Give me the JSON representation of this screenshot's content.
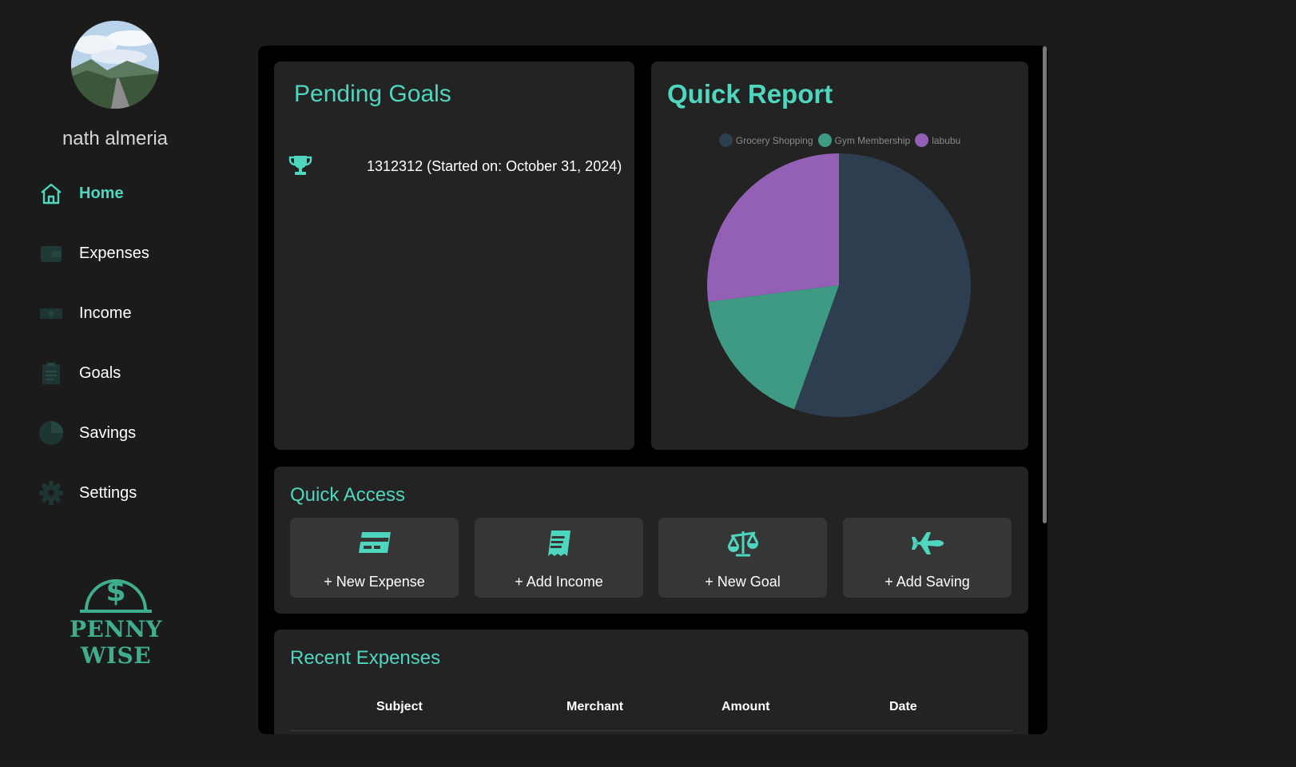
{
  "user": {
    "name": "nath almeria"
  },
  "nav": {
    "items": [
      {
        "label": "Home",
        "icon": "home-icon",
        "active": true
      },
      {
        "label": "Expenses",
        "icon": "wallet-icon"
      },
      {
        "label": "Income",
        "icon": "money-bill-icon"
      },
      {
        "label": "Goals",
        "icon": "clipboard-icon"
      },
      {
        "label": "Savings",
        "icon": "pie-chart-icon"
      },
      {
        "label": "Settings",
        "icon": "gear-icon"
      }
    ]
  },
  "logo": {
    "text": "PENNY WISE"
  },
  "goals": {
    "title": "Pending Goals",
    "items": [
      {
        "text": "1312312 (Started on: October 31, 2024)",
        "icon": "trophy-icon"
      }
    ]
  },
  "report": {
    "title": "Quick Report"
  },
  "chart_data": {
    "type": "pie",
    "categories": [
      "Grocery Shopping",
      "Gym Membership",
      "labubu"
    ],
    "values": [
      55.5,
      17.5,
      27.0
    ],
    "colors": [
      "#2d3e50",
      "#3f9a83",
      "#9360b6"
    ],
    "legend": "top"
  },
  "quick_access": {
    "title": "Quick Access",
    "buttons": [
      {
        "label": "+ New Expense",
        "icon": "credit-card-icon"
      },
      {
        "label": "+ Add Income",
        "icon": "receipt-icon"
      },
      {
        "label": "+ New Goal",
        "icon": "scale-icon"
      },
      {
        "label": "+ Add Saving",
        "icon": "plane-icon"
      }
    ]
  },
  "recent_expenses": {
    "title": "Recent Expenses",
    "columns": [
      "Subject",
      "Merchant",
      "Amount",
      "Date"
    ]
  },
  "colors": {
    "accent": "#4fd6be",
    "logo": "#3fae8e",
    "background": "#1b1b1b",
    "card": "#232323"
  }
}
